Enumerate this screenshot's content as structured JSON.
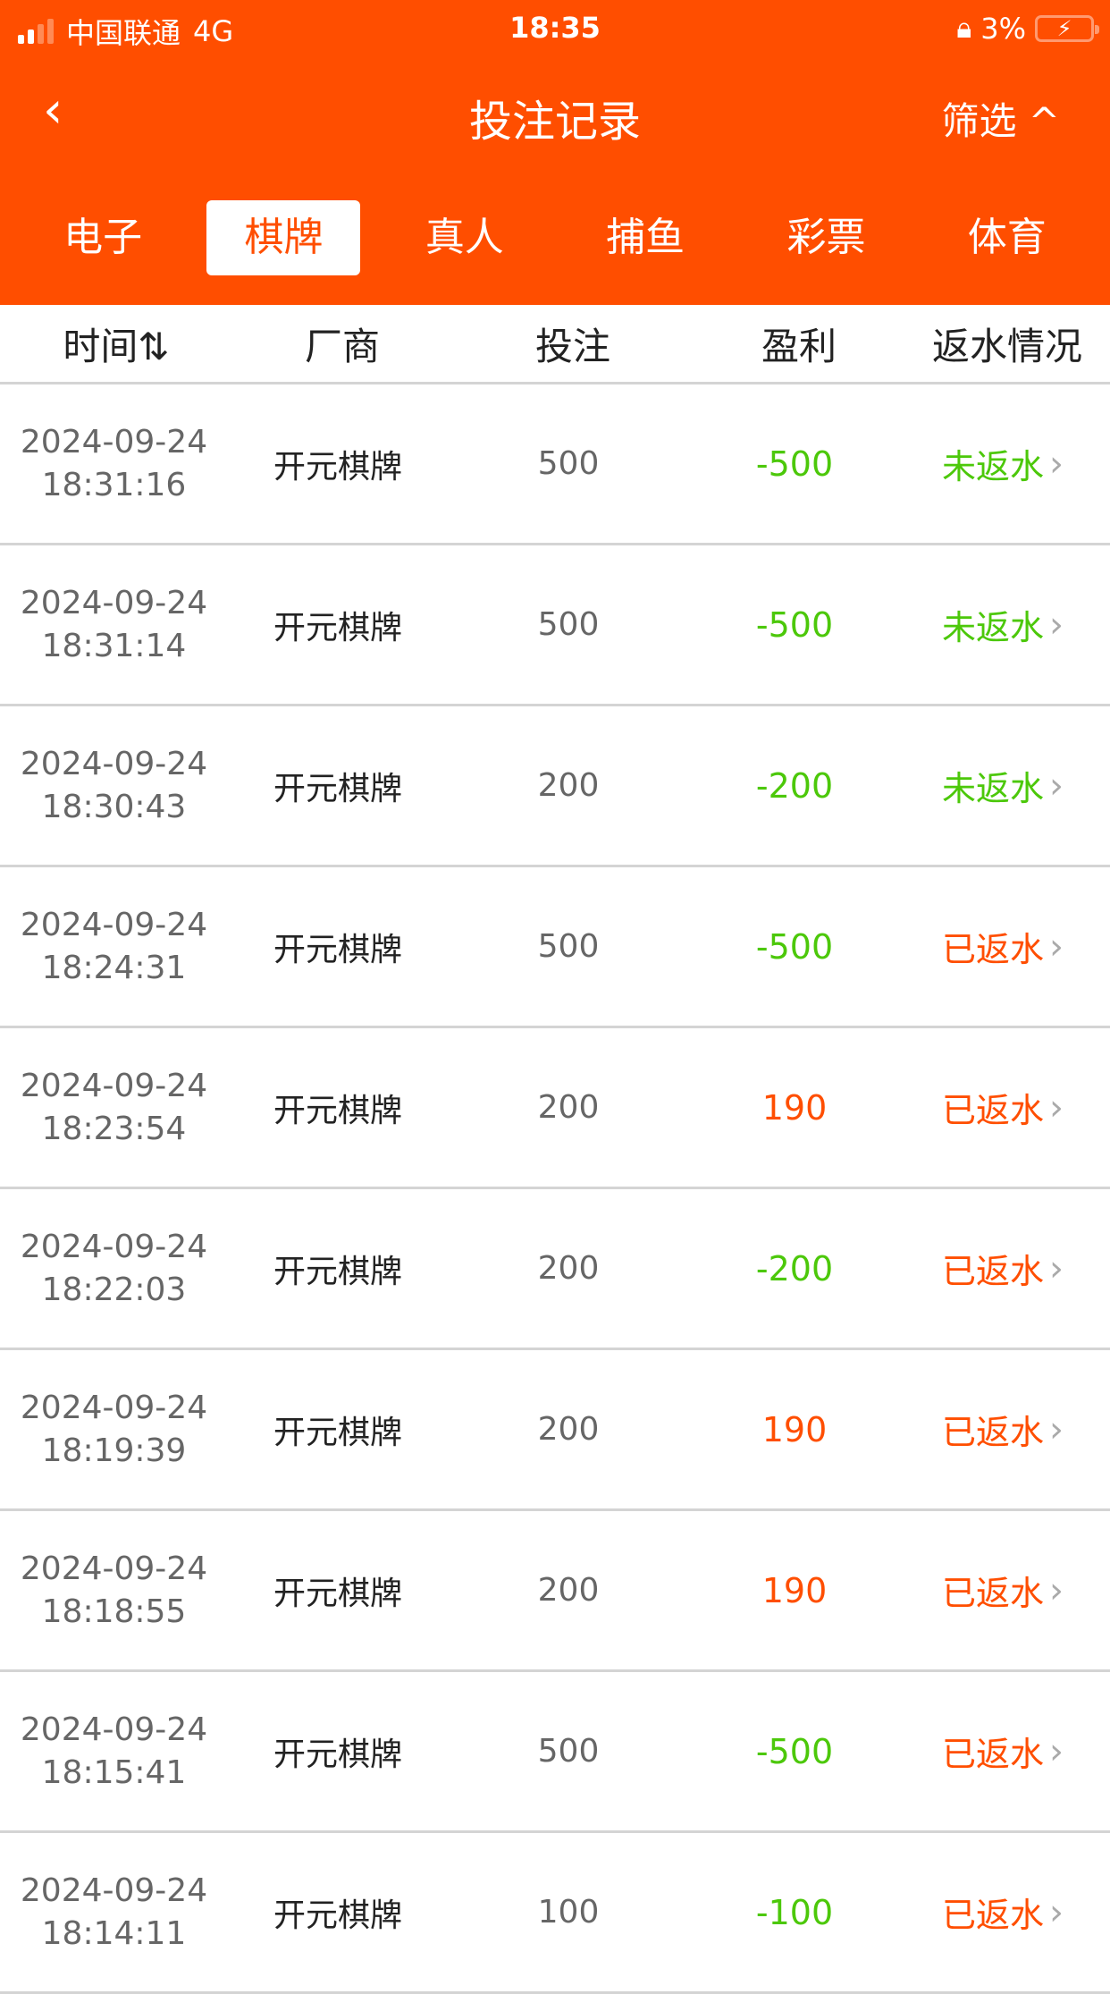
{
  "status_bar": {
    "carrier": "中国联通",
    "network": "4G",
    "time": "18:35",
    "battery": "3%"
  },
  "nav": {
    "title": "投注记录",
    "filter": "筛选"
  },
  "tabs": [
    {
      "label": "电子"
    },
    {
      "label": "棋牌",
      "active": true
    },
    {
      "label": "真人"
    },
    {
      "label": "捕鱼"
    },
    {
      "label": "彩票"
    },
    {
      "label": "体育"
    }
  ],
  "table": {
    "headers": [
      "时间",
      "厂商",
      "投注",
      "盈利",
      "返水情况"
    ],
    "rows": [
      {
        "date": "2024-09-24",
        "time": "18:31:16",
        "vendor": "开元棋牌",
        "bet": "500",
        "profit": "-500",
        "status": "未返水"
      },
      {
        "date": "2024-09-24",
        "time": "18:31:14",
        "vendor": "开元棋牌",
        "bet": "500",
        "profit": "-500",
        "status": "未返水"
      },
      {
        "date": "2024-09-24",
        "time": "18:30:43",
        "vendor": "开元棋牌",
        "bet": "200",
        "profit": "-200",
        "status": "未返水"
      },
      {
        "date": "2024-09-24",
        "time": "18:24:31",
        "vendor": "开元棋牌",
        "bet": "500",
        "profit": "-500",
        "status": "已返水"
      },
      {
        "date": "2024-09-24",
        "time": "18:23:54",
        "vendor": "开元棋牌",
        "bet": "200",
        "profit": "190",
        "status": "已返水"
      },
      {
        "date": "2024-09-24",
        "time": "18:22:03",
        "vendor": "开元棋牌",
        "bet": "200",
        "profit": "-200",
        "status": "已返水"
      },
      {
        "date": "2024-09-24",
        "time": "18:19:39",
        "vendor": "开元棋牌",
        "bet": "200",
        "profit": "190",
        "status": "已返水"
      },
      {
        "date": "2024-09-24",
        "time": "18:18:55",
        "vendor": "开元棋牌",
        "bet": "200",
        "profit": "190",
        "status": "已返水"
      },
      {
        "date": "2024-09-24",
        "time": "18:15:41",
        "vendor": "开元棋牌",
        "bet": "500",
        "profit": "-500",
        "status": "已返水"
      },
      {
        "date": "2024-09-24",
        "time": "18:14:11",
        "vendor": "开元棋牌",
        "bet": "100",
        "profit": "-100",
        "status": "已返水"
      }
    ]
  },
  "colors": {
    "brand": "#FF4E00",
    "loss": "#4CC80A",
    "gain": "#FF4E00",
    "not_rebated": "#4CC80A",
    "rebated": "#FF4E00"
  }
}
